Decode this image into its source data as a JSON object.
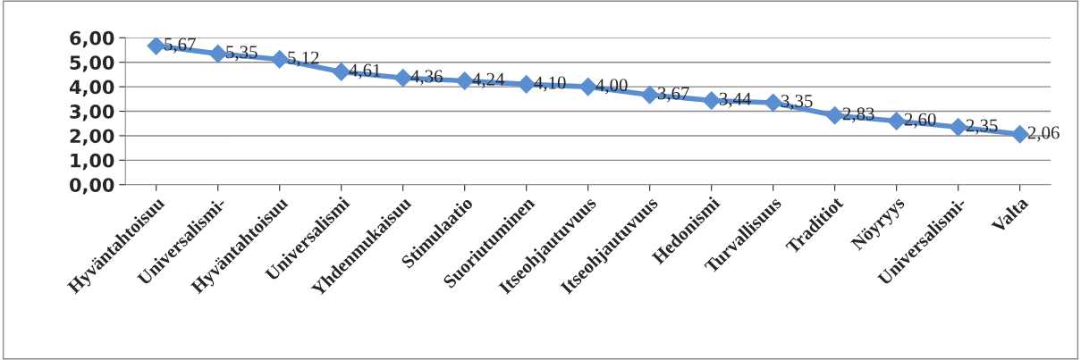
{
  "chart_data": {
    "type": "line",
    "categories": [
      "Hyväntahtoisuu",
      "Universalismi-",
      "Hyväntahtoisuu",
      "Universalismi",
      "Yhdenmukaisuu",
      "Stimulaatio",
      "Suoriutuminen",
      "Itseohjautuvuus",
      "Itseohjautuvuus",
      "Hedonismi",
      "Turvallisuus",
      "Traditiot",
      "Nöyryys",
      "Universalismi-",
      "Valta"
    ],
    "series": [
      {
        "color": "#5b8ed0",
        "values": [
          5.67,
          5.35,
          5.12,
          4.61,
          4.36,
          4.24,
          4.1,
          4.0,
          3.67,
          3.44,
          3.35,
          2.83,
          2.6,
          2.35,
          2.06
        ],
        "value_labels": [
          "5,67",
          "5,35",
          "5,12",
          "4,61",
          "4,36",
          "4,24",
          "4,10",
          "4,00",
          "3,67",
          "3,44",
          "3,35",
          "2,83",
          "2,60",
          "2,35",
          "2,06"
        ]
      }
    ],
    "ylim": [
      0,
      6
    ],
    "yticks": [
      {
        "value": 0,
        "label": "0,00"
      },
      {
        "value": 1,
        "label": "1,00"
      },
      {
        "value": 2,
        "label": "2,00"
      },
      {
        "value": 3,
        "label": "3,00"
      },
      {
        "value": 4,
        "label": "4,00"
      },
      {
        "value": 5,
        "label": "5,00"
      },
      {
        "value": 6,
        "label": "6,00"
      }
    ],
    "grid": "y",
    "marker": "diamond",
    "line_style": "solid",
    "legend": false
  }
}
